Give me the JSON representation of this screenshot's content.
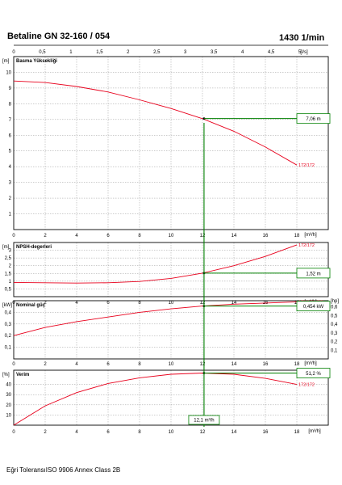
{
  "header": {
    "model": "Betaline GN 32-160 / 054",
    "speed": "1430 1/min"
  },
  "footer": {
    "note": "Eğri ToleransıISO 9906 Annex Class 2B"
  },
  "colors": {
    "curve": "#e8001c",
    "operating": "#008000",
    "grid": "#9a9a9a",
    "frame": "#000000"
  },
  "chart_data": {
    "type": "line",
    "top_axis": {
      "unit": "[l/s]",
      "ticks": [
        "0",
        "0,5",
        "1",
        "1,5",
        "2",
        "2,5",
        "3",
        "3,5",
        "4",
        "4,5",
        "5"
      ],
      "range": [
        0,
        5.5
      ]
    },
    "x_axis": {
      "unit": "[m³/h]",
      "ticks": [
        "0",
        "2",
        "4",
        "6",
        "8",
        "10",
        "12",
        "14",
        "16",
        "18"
      ],
      "range": [
        0,
        20
      ]
    },
    "operating_point": {
      "flow": 12.1,
      "flow_label": "12,1 m³/h"
    },
    "panels": [
      {
        "id": "head",
        "title": "Basma Yüksekliği",
        "unit": "[m]",
        "y_ticks": [
          "1",
          "2",
          "3",
          "4",
          "5",
          "6",
          "7",
          "8",
          "9",
          "10"
        ],
        "ylim": [
          0,
          11
        ],
        "curve_label": "172/172",
        "x": [
          0,
          2,
          4,
          6,
          8,
          10,
          12,
          14,
          16,
          18
        ],
        "y": [
          9.45,
          9.35,
          9.1,
          8.75,
          8.25,
          7.7,
          7.05,
          6.25,
          5.25,
          4.1
        ],
        "op_value": 7.06,
        "op_label": "7,06 m"
      },
      {
        "id": "npsh",
        "title": "NPSH-degerleri",
        "unit": "[m]",
        "y_ticks": [
          "0,5",
          "1",
          "1,5",
          "2",
          "2,5",
          "3"
        ],
        "ylim": [
          0,
          3.5
        ],
        "curve_label": "172/172",
        "x": [
          0,
          2,
          4,
          6,
          8,
          10,
          12,
          14,
          16,
          18
        ],
        "y": [
          0.92,
          0.9,
          0.88,
          0.9,
          0.98,
          1.18,
          1.52,
          2.0,
          2.6,
          3.35
        ],
        "op_value": 1.52,
        "op_label": "1,52 m"
      },
      {
        "id": "power",
        "title": "Nominal güç",
        "unit": "[kW]",
        "right_unit": "[hp]",
        "y_ticks": [
          "0,1",
          "0,2",
          "0,3",
          "0,4"
        ],
        "right_ticks": [
          "0,1",
          "0,2",
          "0,3",
          "0,4",
          "0,5",
          "0,6"
        ],
        "ylim": [
          0,
          0.5
        ],
        "curve_label": "172/172 (P2)",
        "x": [
          0,
          2,
          4,
          6,
          8,
          10,
          12,
          14,
          16,
          18
        ],
        "y": [
          0.2,
          0.27,
          0.32,
          0.36,
          0.4,
          0.43,
          0.454,
          0.47,
          0.48,
          0.49
        ],
        "op_value": 0.454,
        "op_label": "0,454 kW"
      },
      {
        "id": "efficiency",
        "title": "Verim",
        "unit": "[%]",
        "y_ticks": [
          "10",
          "20",
          "30",
          "40"
        ],
        "ylim": [
          0,
          54
        ],
        "curve_label": "172/172",
        "x": [
          0,
          2,
          4,
          6,
          8,
          10,
          12,
          14,
          16,
          18
        ],
        "y": [
          0,
          19,
          32,
          41,
          46.5,
          50,
          51.2,
          50,
          46,
          40
        ],
        "op_value": 51.2,
        "op_label": "51,2 %"
      }
    ]
  }
}
